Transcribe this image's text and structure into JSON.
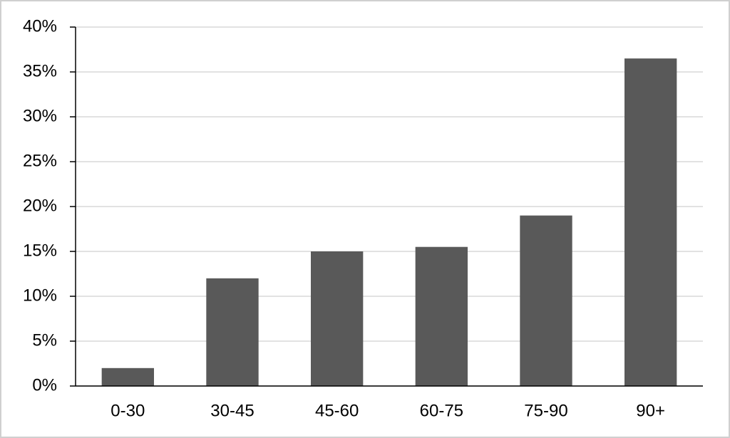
{
  "chart_data": {
    "type": "bar",
    "categories": [
      "0-30",
      "30-45",
      "45-60",
      "60-75",
      "75-90",
      "90+"
    ],
    "values": [
      2,
      12,
      15,
      15.5,
      19,
      36.5
    ],
    "color": "#595959",
    "ylim": [
      0,
      40
    ],
    "yticks": [
      {
        "value": 0,
        "label": "0%"
      },
      {
        "value": 5,
        "label": "5%"
      },
      {
        "value": 10,
        "label": "10%"
      },
      {
        "value": 15,
        "label": "15%"
      },
      {
        "value": 20,
        "label": "20%"
      },
      {
        "value": 25,
        "label": "25%"
      },
      {
        "value": 30,
        "label": "30%"
      },
      {
        "value": 35,
        "label": "35%"
      },
      {
        "value": 40,
        "label": "40%"
      }
    ],
    "grid": true
  }
}
